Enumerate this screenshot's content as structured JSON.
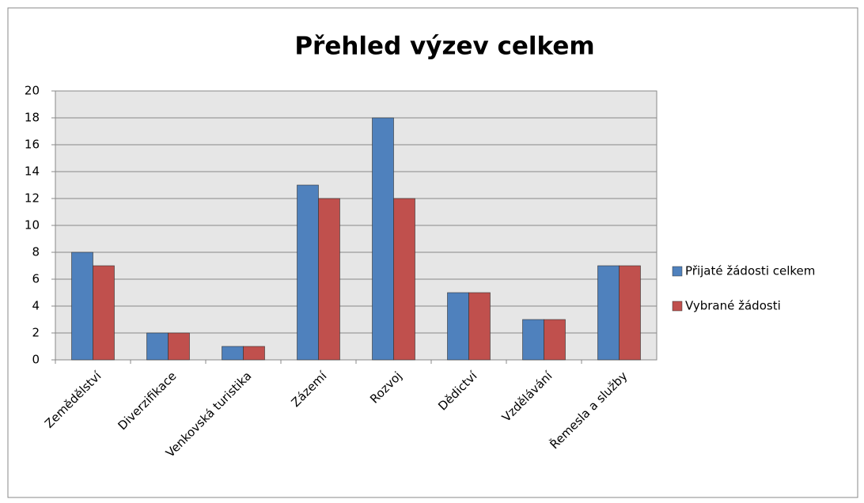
{
  "chart_data": {
    "type": "bar",
    "title": "Přehled výzev celkem",
    "categories": [
      "Zemědělství",
      "Diverzifikace",
      "Venkovská turistika",
      "Zázemí",
      "Rozvoj",
      "Dědictví",
      "Vzdělávání",
      "Řemesla a služby"
    ],
    "series": [
      {
        "name": "Přijaté žádosti celkem",
        "color": "#4f81bd",
        "values": [
          8,
          2,
          1,
          13,
          18,
          5,
          3,
          7
        ]
      },
      {
        "name": "Vybrané žádosti",
        "color": "#c0504d",
        "values": [
          7,
          2,
          1,
          12,
          12,
          5,
          3,
          7
        ]
      }
    ],
    "ylim": [
      0,
      20
    ],
    "yticks": [
      0,
      2,
      4,
      6,
      8,
      10,
      12,
      14,
      16,
      18,
      20
    ],
    "grid": true,
    "legend": "right"
  }
}
